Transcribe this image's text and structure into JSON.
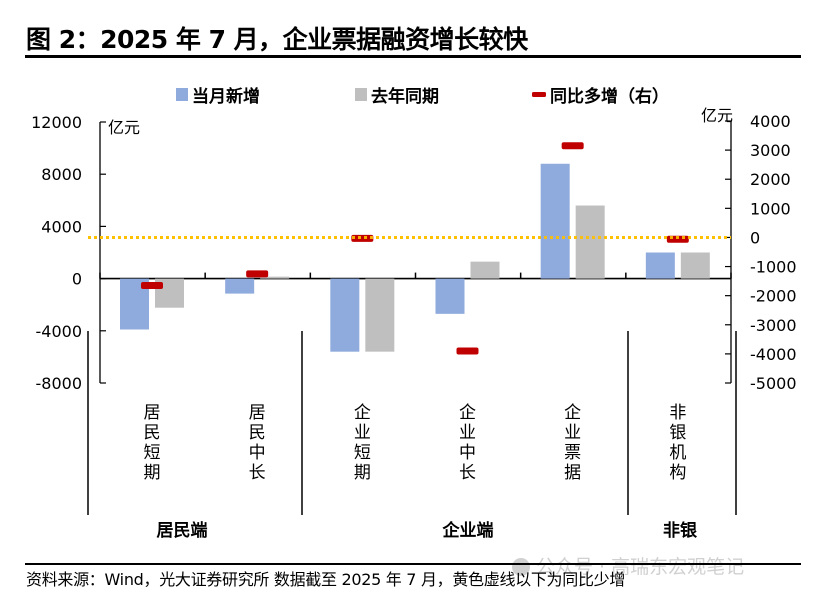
{
  "title": "图 2：2025 年 7 月，企业票据融资增长较快",
  "source_note": "资料来源：Wind，光大证券研究所 数据截至 2025 年 7 月，黄色虚线以下为同比少增",
  "watermark": "公众号 · 高瑞东宏观笔记",
  "chart_data": {
    "type": "bar",
    "title": "2025 年 7 月，企业票据融资增长较快",
    "categories": [
      "居民短期",
      "居民中长",
      "企业短期",
      "企业中长",
      "企业票据",
      "非银机构"
    ],
    "groups": [
      {
        "label": "居民端",
        "categories": [
          "居民短期",
          "居民中长"
        ]
      },
      {
        "label": "企业端",
        "categories": [
          "企业短期",
          "企业中长",
          "企业票据"
        ]
      },
      {
        "label": "非银",
        "categories": [
          "非银机构"
        ]
      }
    ],
    "series": [
      {
        "name": "当月新增",
        "type": "bar",
        "axis": "left",
        "color": "#8faadc",
        "values": [
          -3900,
          -1150,
          -5600,
          -2700,
          8800,
          2000
        ]
      },
      {
        "name": "去年同期",
        "type": "bar",
        "axis": "left",
        "color": "#bfbfbf",
        "values": [
          -2230,
          150,
          -5600,
          1300,
          5600,
          2000
        ]
      },
      {
        "name": "同比多增（右）",
        "type": "marker",
        "axis": "right",
        "color": "#c00000",
        "values": [
          -1650,
          -1250,
          -30,
          -3900,
          3150,
          -60
        ]
      }
    ],
    "left_axis": {
      "label": "亿元",
      "ylim": [
        -8000,
        12000
      ],
      "ticks": [
        "12000",
        "8000",
        "4000",
        "0",
        "-4000",
        "-8000"
      ],
      "tick_values": [
        12000,
        8000,
        4000,
        0,
        -4000,
        -8000
      ]
    },
    "right_axis": {
      "label": "亿元",
      "ylim": [
        -5000,
        4000
      ],
      "ticks": [
        "4000",
        "3000",
        "2000",
        "1000",
        "0",
        "-1000",
        "-2000",
        "-3000",
        "-4000",
        "-5000"
      ],
      "tick_values": [
        4000,
        3000,
        2000,
        1000,
        0,
        -1000,
        -2000,
        -3000,
        -4000,
        -5000
      ]
    },
    "reference_line": {
      "axis": "right",
      "value": 0,
      "style": "dotted",
      "color": "#ffc000",
      "note": "黄色虚线以下为同比少增"
    },
    "legend": {
      "position": "top",
      "entries": [
        "当月新增",
        "去年同期",
        "同比多增（右）"
      ]
    },
    "grid": false
  }
}
